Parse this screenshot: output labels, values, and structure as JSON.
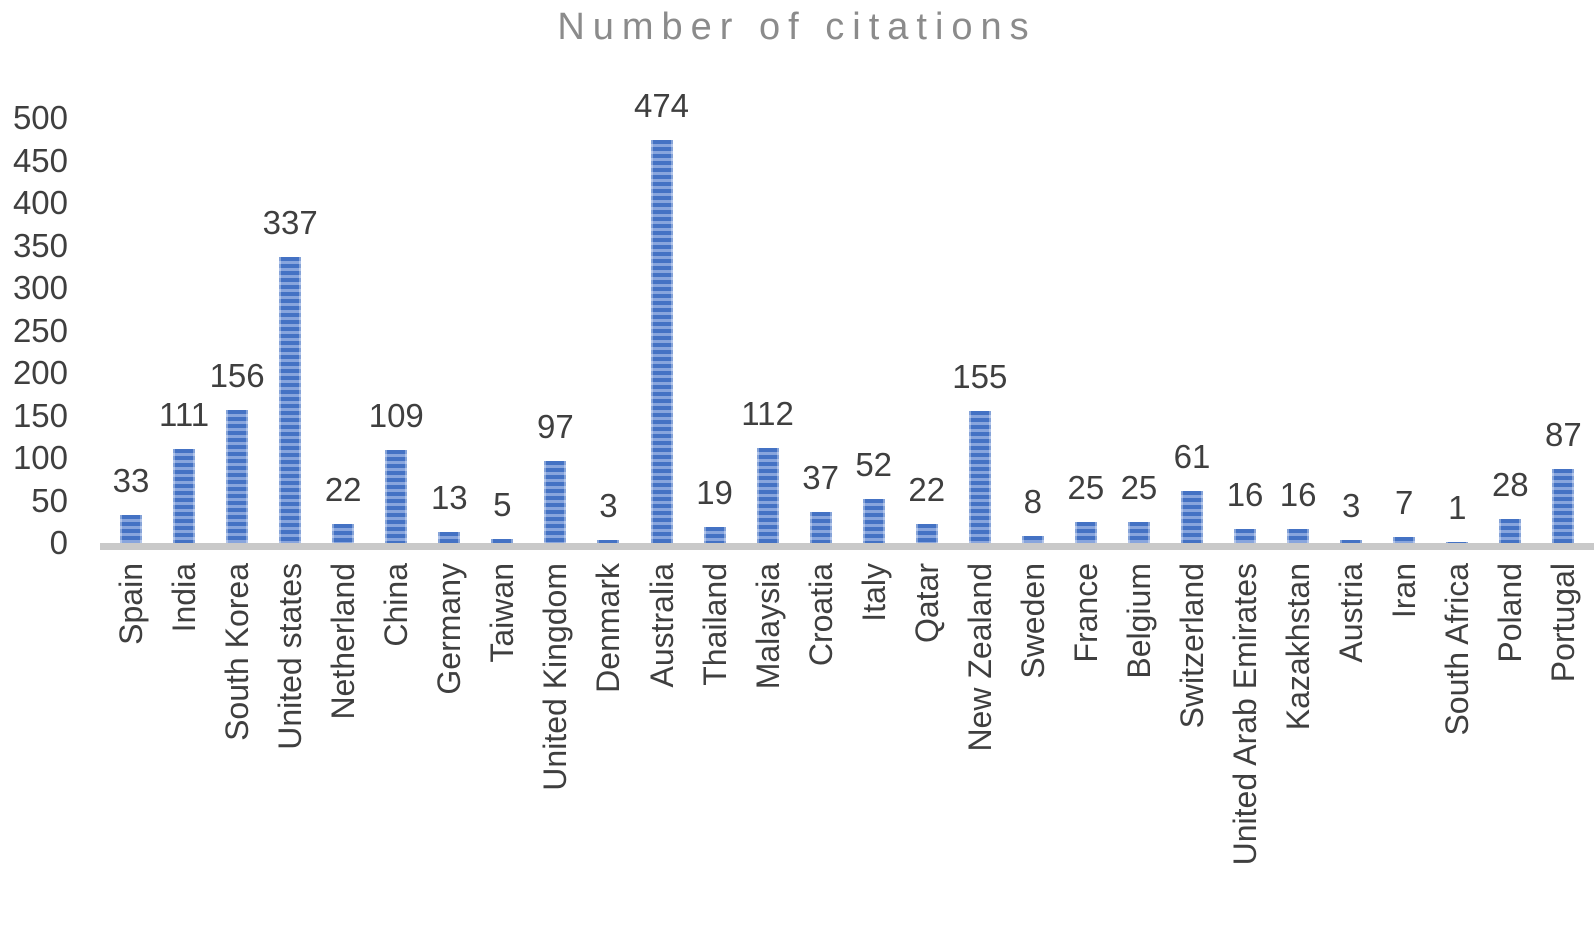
{
  "chart_data": {
    "type": "bar",
    "title": "Number of citations",
    "categories": [
      "Spain",
      "India",
      "South Korea",
      "United states",
      "Netherland",
      "China",
      "Germany",
      "Taiwan",
      "United Kingdom",
      "Denmark",
      "Australia",
      "Thailand",
      "Malaysia",
      "Croatia",
      "Italy",
      "Qatar",
      "New Zealand",
      "Sweden",
      "France",
      "Belgium",
      "Switzerland",
      "United Arab Emirates",
      "Kazakhstan",
      "Austria",
      "Iran",
      "South Africa",
      "Poland",
      "Portugal"
    ],
    "values": [
      33,
      111,
      156,
      337,
      22,
      109,
      13,
      5,
      97,
      3,
      474,
      19,
      112,
      37,
      52,
      22,
      155,
      8,
      25,
      25,
      61,
      16,
      16,
      3,
      7,
      1,
      28,
      87
    ],
    "xlabel": "",
    "ylabel": "",
    "ylim": [
      0,
      500
    ],
    "yticks": [
      0,
      50,
      100,
      150,
      200,
      250,
      300,
      350,
      400,
      450,
      500
    ],
    "grid": false,
    "legend_position": "none",
    "data_labels": true,
    "colors": {
      "bar_primary": "#4472c4",
      "bar_stripe": "#88a5dd",
      "axis_line": "#c9c9c9",
      "tick_label": "#3f3f3f",
      "title": "#8b8b8b"
    }
  }
}
